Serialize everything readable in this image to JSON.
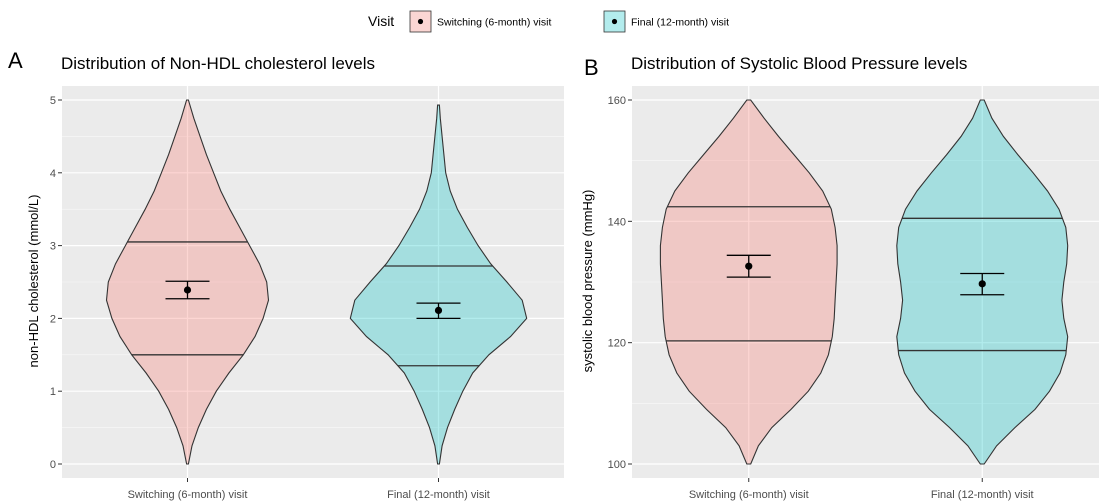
{
  "legend": {
    "title": "Visit",
    "items": [
      {
        "label": "Switching (6-month) visit",
        "fill": "#F8766D"
      },
      {
        "label": "Final (12-month) visit",
        "fill": "#00BFC4"
      }
    ]
  },
  "colors": {
    "panel_bg": "#EBEBEB",
    "grid": "#FFFFFF",
    "outline": "#333333",
    "axis_text": "#4D4D4D",
    "violin_alpha": 0.3
  },
  "chart_data": [
    {
      "type": "violin",
      "panel_tag": "A",
      "title": "Distribution of Non-HDL cholesterol levels",
      "xlabel": "",
      "ylabel": "non-HDL cholesterol (mmol/L)",
      "ylim": [
        0,
        5
      ],
      "yticks": [
        0,
        1,
        2,
        3,
        4,
        5
      ],
      "grid": true,
      "legend_position": "top",
      "categories": [
        "Switching (6-month) visit",
        "Final (12-month) visit"
      ],
      "series": [
        {
          "name": "Switching (6-month) visit",
          "range": [
            0,
            5
          ],
          "quantiles": {
            "q25": 1.5,
            "q75": 3.05
          },
          "mean": 2.39,
          "ci": [
            2.27,
            2.51
          ],
          "density": [
            [
              0,
              0.01
            ],
            [
              0.25,
              0.05
            ],
            [
              0.5,
              0.12
            ],
            [
              0.75,
              0.21
            ],
            [
              1.0,
              0.32
            ],
            [
              1.25,
              0.46
            ],
            [
              1.5,
              0.62
            ],
            [
              1.75,
              0.75
            ],
            [
              2.0,
              0.84
            ],
            [
              2.25,
              0.9
            ],
            [
              2.5,
              0.88
            ],
            [
              2.75,
              0.8
            ],
            [
              3.0,
              0.69
            ],
            [
              3.25,
              0.58
            ],
            [
              3.5,
              0.47
            ],
            [
              3.75,
              0.37
            ],
            [
              4.0,
              0.29
            ],
            [
              4.25,
              0.21
            ],
            [
              4.5,
              0.14
            ],
            [
              4.75,
              0.07
            ],
            [
              5.0,
              0.01
            ]
          ]
        },
        {
          "name": "Final (12-month) visit",
          "range": [
            0,
            4.93
          ],
          "quantiles": {
            "q25": 1.35,
            "q75": 2.72
          },
          "mean": 2.11,
          "ci": [
            2.0,
            2.21
          ],
          "density": [
            [
              0,
              0.01
            ],
            [
              0.25,
              0.04
            ],
            [
              0.5,
              0.1
            ],
            [
              0.75,
              0.18
            ],
            [
              1.0,
              0.27
            ],
            [
              1.25,
              0.38
            ],
            [
              1.5,
              0.56
            ],
            [
              1.75,
              0.8
            ],
            [
              2.0,
              0.98
            ],
            [
              2.25,
              0.93
            ],
            [
              2.5,
              0.76
            ],
            [
              2.75,
              0.58
            ],
            [
              3.0,
              0.44
            ],
            [
              3.25,
              0.32
            ],
            [
              3.5,
              0.21
            ],
            [
              3.75,
              0.13
            ],
            [
              4.0,
              0.08
            ],
            [
              4.25,
              0.06
            ],
            [
              4.5,
              0.04
            ],
            [
              4.75,
              0.02
            ],
            [
              4.93,
              0.01
            ]
          ]
        }
      ]
    },
    {
      "type": "violin",
      "panel_tag": "B",
      "title": "Distribution of Systolic Blood Pressure levels",
      "xlabel": "",
      "ylabel": "systolic blood pressure (mmHg)",
      "ylim": [
        100,
        160
      ],
      "yticks": [
        100,
        120,
        140,
        160
      ],
      "grid": true,
      "legend_position": "top",
      "categories": [
        "Switching (6-month) visit",
        "Final (12-month) visit"
      ],
      "series": [
        {
          "name": "Switching (6-month) visit",
          "range": [
            100,
            160
          ],
          "quantiles": {
            "q25": 120.3,
            "q75": 142.4
          },
          "mean": 132.6,
          "ci": [
            130.8,
            134.4
          ],
          "density": [
            [
              100,
              0.02
            ],
            [
              103,
              0.1
            ],
            [
              106,
              0.24
            ],
            [
              109,
              0.44
            ],
            [
              112,
              0.62
            ],
            [
              115,
              0.75
            ],
            [
              118,
              0.83
            ],
            [
              121,
              0.87
            ],
            [
              124,
              0.89
            ],
            [
              127,
              0.9
            ],
            [
              130,
              0.91
            ],
            [
              133,
              0.92
            ],
            [
              136,
              0.92
            ],
            [
              139,
              0.9
            ],
            [
              142,
              0.86
            ],
            [
              145,
              0.77
            ],
            [
              148,
              0.63
            ],
            [
              151,
              0.47
            ],
            [
              154,
              0.31
            ],
            [
              157,
              0.16
            ],
            [
              160,
              0.02
            ]
          ]
        },
        {
          "name": "Final (12-month) visit",
          "range": [
            100,
            160
          ],
          "quantiles": {
            "q25": 118.7,
            "q75": 140.5
          },
          "mean": 129.7,
          "ci": [
            127.9,
            131.4
          ],
          "density": [
            [
              100,
              0.02
            ],
            [
              103,
              0.15
            ],
            [
              106,
              0.34
            ],
            [
              109,
              0.55
            ],
            [
              112,
              0.7
            ],
            [
              115,
              0.81
            ],
            [
              118,
              0.87
            ],
            [
              121,
              0.89
            ],
            [
              124,
              0.85
            ],
            [
              127,
              0.83
            ],
            [
              130,
              0.85
            ],
            [
              133,
              0.88
            ],
            [
              136,
              0.89
            ],
            [
              139,
              0.87
            ],
            [
              142,
              0.8
            ],
            [
              145,
              0.68
            ],
            [
              148,
              0.53
            ],
            [
              151,
              0.37
            ],
            [
              154,
              0.22
            ],
            [
              157,
              0.1
            ],
            [
              160,
              0.02
            ]
          ]
        }
      ]
    }
  ]
}
